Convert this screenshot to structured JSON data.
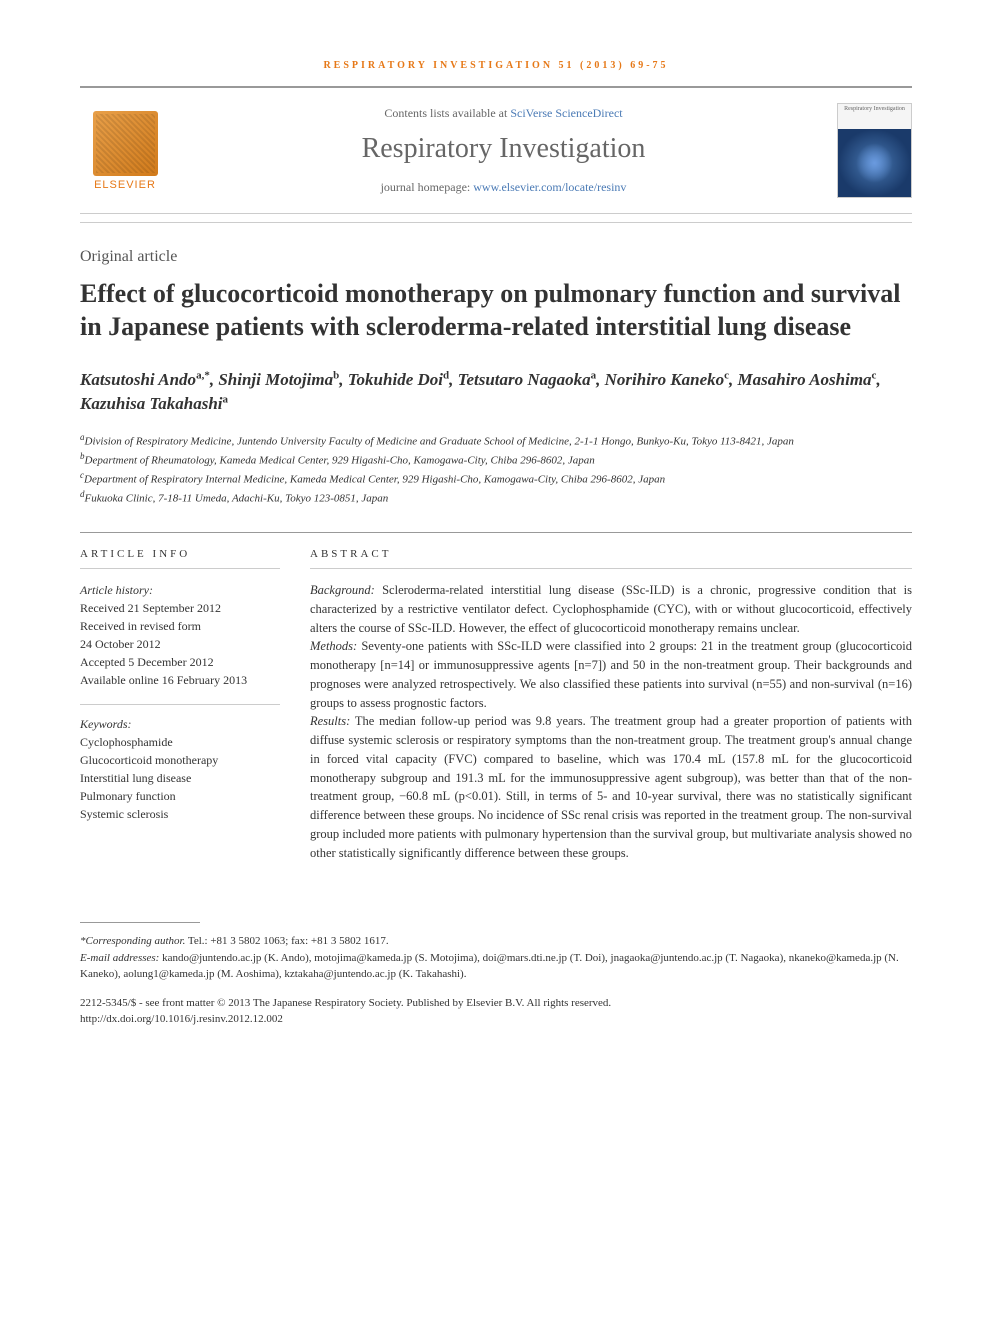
{
  "running_head": "RESPIRATORY INVESTIGATION 51 (2013) 69-75",
  "header": {
    "contents_prefix": "Contents lists available at ",
    "contents_link": "SciVerse ScienceDirect",
    "journal_name": "Respiratory Investigation",
    "homepage_prefix": "journal homepage: ",
    "homepage_link": "www.elsevier.com/locate/resinv",
    "publisher": "ELSEVIER",
    "cover_label": "Respiratory Investigation"
  },
  "article": {
    "type": "Original article",
    "title": "Effect of glucocorticoid monotherapy on pulmonary function and survival in Japanese patients with scleroderma-related interstitial lung disease"
  },
  "authors": [
    {
      "name": "Katsutoshi Ando",
      "sup": "a,*"
    },
    {
      "name": "Shinji Motojima",
      "sup": "b"
    },
    {
      "name": "Tokuhide Doi",
      "sup": "d"
    },
    {
      "name": "Tetsutaro Nagaoka",
      "sup": "a"
    },
    {
      "name": "Norihiro Kaneko",
      "sup": "c"
    },
    {
      "name": "Masahiro Aoshima",
      "sup": "c"
    },
    {
      "name": "Kazuhisa Takahashi",
      "sup": "a"
    }
  ],
  "affiliations": [
    {
      "sup": "a",
      "text": "Division of Respiratory Medicine, Juntendo University Faculty of Medicine and Graduate School of Medicine, 2-1-1 Hongo, Bunkyo-Ku, Tokyo 113-8421, Japan"
    },
    {
      "sup": "b",
      "text": "Department of Rheumatology, Kameda Medical Center, 929 Higashi-Cho, Kamogawa-City, Chiba 296-8602, Japan"
    },
    {
      "sup": "c",
      "text": "Department of Respiratory Internal Medicine, Kameda Medical Center, 929 Higashi-Cho, Kamogawa-City, Chiba 296-8602, Japan"
    },
    {
      "sup": "d",
      "text": "Fukuoka Clinic, 7-18-11 Umeda, Adachi-Ku, Tokyo 123-0851, Japan"
    }
  ],
  "article_info": {
    "heading": "ARTICLE INFO",
    "history_label": "Article history:",
    "history": [
      "Received 21 September 2012",
      "Received in revised form",
      "24 October 2012",
      "Accepted 5 December 2012",
      "Available online 16 February 2013"
    ],
    "keywords_label": "Keywords:",
    "keywords": [
      "Cyclophosphamide",
      "Glucocorticoid monotherapy",
      "Interstitial lung disease",
      "Pulmonary function",
      "Systemic sclerosis"
    ]
  },
  "abstract": {
    "heading": "ABSTRACT",
    "sections": [
      {
        "label": "Background:",
        "text": " Scleroderma-related interstitial lung disease (SSc-ILD) is a chronic, progressive condition that is characterized by a restrictive ventilator defect. Cyclophosphamide (CYC), with or without glucocorticoid, effectively alters the course of SSc-ILD. However, the effect of glucocorticoid monotherapy remains unclear."
      },
      {
        "label": "Methods:",
        "text": " Seventy-one patients with SSc-ILD were classified into 2 groups: 21 in the treatment group (glucocorticoid monotherapy [n=14] or immunosuppressive agents [n=7]) and 50 in the non-treatment group. Their backgrounds and prognoses were analyzed retrospectively. We also classified these patients into survival (n=55) and non-survival (n=16) groups to assess prognostic factors."
      },
      {
        "label": "Results:",
        "text": " The median follow-up period was 9.8 years. The treatment group had a greater proportion of patients with diffuse systemic sclerosis or respiratory symptoms than the non-treatment group. The treatment group's annual change in forced vital capacity (FVC) compared to baseline, which was 170.4 mL (157.8 mL for the glucocorticoid monotherapy subgroup and 191.3 mL for the immunosuppressive agent subgroup), was better than that of the non-treatment group, −60.8 mL (p<0.01). Still, in terms of 5- and 10-year survival, there was no statistically significant difference between these groups. No incidence of SSc renal crisis was reported in the treatment group. The non-survival group included more patients with pulmonary hypertension than the survival group, but multivariate analysis showed no other statistically significantly difference between these groups."
      }
    ]
  },
  "footer": {
    "corresponding_label": "*Corresponding author.",
    "corresponding_text": " Tel.: +81 3 5802 1063; fax: +81 3 5802 1617.",
    "email_label": "E-mail addresses:",
    "emails": " kando@juntendo.ac.jp (K. Ando), motojima@kameda.jp (S. Motojima), doi@mars.dti.ne.jp (T. Doi), jnagaoka@juntendo.ac.jp (T. Nagaoka), nkaneko@kameda.jp (N. Kaneko), aolung1@kameda.jp (M. Aoshima), kztakaha@juntendo.ac.jp (K. Takahashi).",
    "copyright_line1": "2212-5345/$ - see front matter © 2013 The Japanese Respiratory Society. Published by Elsevier B.V. All rights reserved.",
    "copyright_line2": "http://dx.doi.org/10.1016/j.resinv.2012.12.002"
  },
  "colors": {
    "accent": "#e67817",
    "link": "#4a7ab5",
    "text": "#333333",
    "rule": "#999999"
  }
}
